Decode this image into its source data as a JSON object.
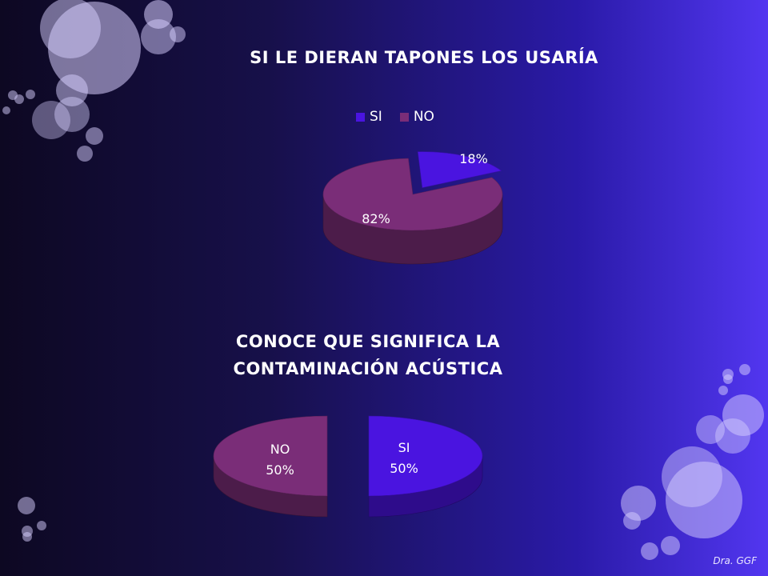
{
  "colors": {
    "si": "#4a14e0",
    "no": "#7a2d78",
    "background": "#17104a"
  },
  "chart_data": [
    {
      "type": "pie",
      "title": "SI LE DIERAN TAPONES LOS USARÍA",
      "legend": [
        "SI",
        "NO"
      ],
      "legend_position": "top",
      "slices": [
        {
          "name": "SI",
          "value": 18,
          "label": "18%"
        },
        {
          "name": "NO",
          "value": 82,
          "label": "82%"
        }
      ]
    },
    {
      "type": "pie",
      "title": "CONOCE QUE SIGNIFICA LA CONTAMINACIÓN ACÚSTICA",
      "slices": [
        {
          "name": "SI",
          "value": 50,
          "label": "50%"
        },
        {
          "name": "NO",
          "value": 50,
          "label": "50%"
        }
      ]
    }
  ],
  "footer": {
    "credit": "Dra. GGF"
  }
}
